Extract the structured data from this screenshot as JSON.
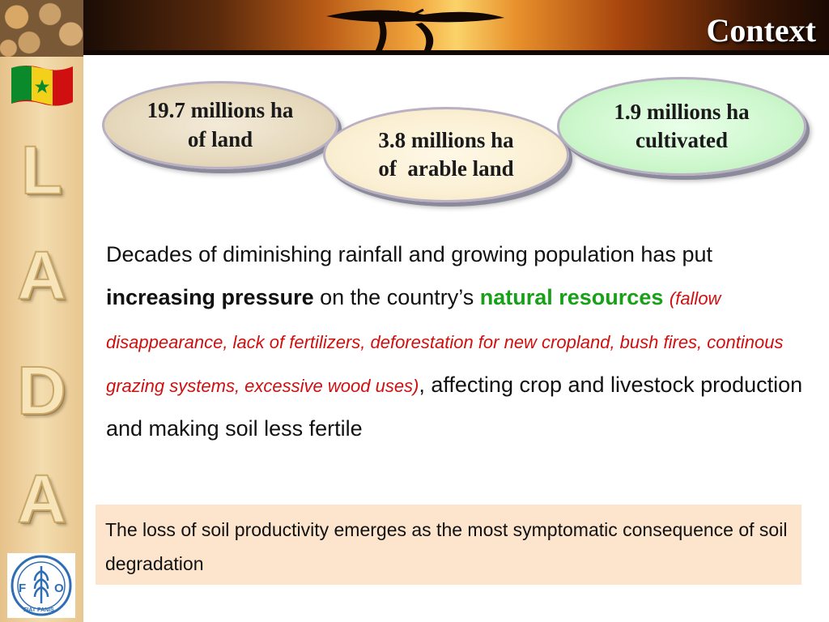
{
  "slide": {
    "title": "Context",
    "sidebar": {
      "letters": [
        "L",
        "A",
        "D",
        "A"
      ],
      "flag_icon": "senegal-flag-icon",
      "logo_icon": "fao-logo-icon"
    },
    "ovals": {
      "land": {
        "line1": "19.7 millions ha",
        "line2": "of land",
        "color": "#e6d9bd"
      },
      "arable": {
        "line1": "3.8 millions ha",
        "line2": "of  arable land",
        "color": "#fbf0d4"
      },
      "cultivated": {
        "line1": "1.9 millions ha",
        "line2": "cultivated",
        "color": "#cdf7cd"
      }
    },
    "paragraph": {
      "part1": "Decades of diminishing rainfall and growing population has put ",
      "bold": "increasing pressure",
      "part2": " on the country’s ",
      "green": "natural resources",
      "space": " ",
      "red": "(fallow disappearance, lack of fertilizers, deforestation for new cropland, bush fires, continous grazing systems, excessive wood uses)",
      "part3": ", affecting crop and livestock production and making soil less fertile"
    },
    "box": {
      "text": "The loss of soil productivity emerges as the most symptomatic consequence of soil degradation",
      "color": "#fde4cc"
    },
    "colors": {
      "green": "#18a018",
      "red": "#d01010"
    },
    "logo": {
      "top": "FAO",
      "bottom": "FIAT PANIS"
    }
  }
}
